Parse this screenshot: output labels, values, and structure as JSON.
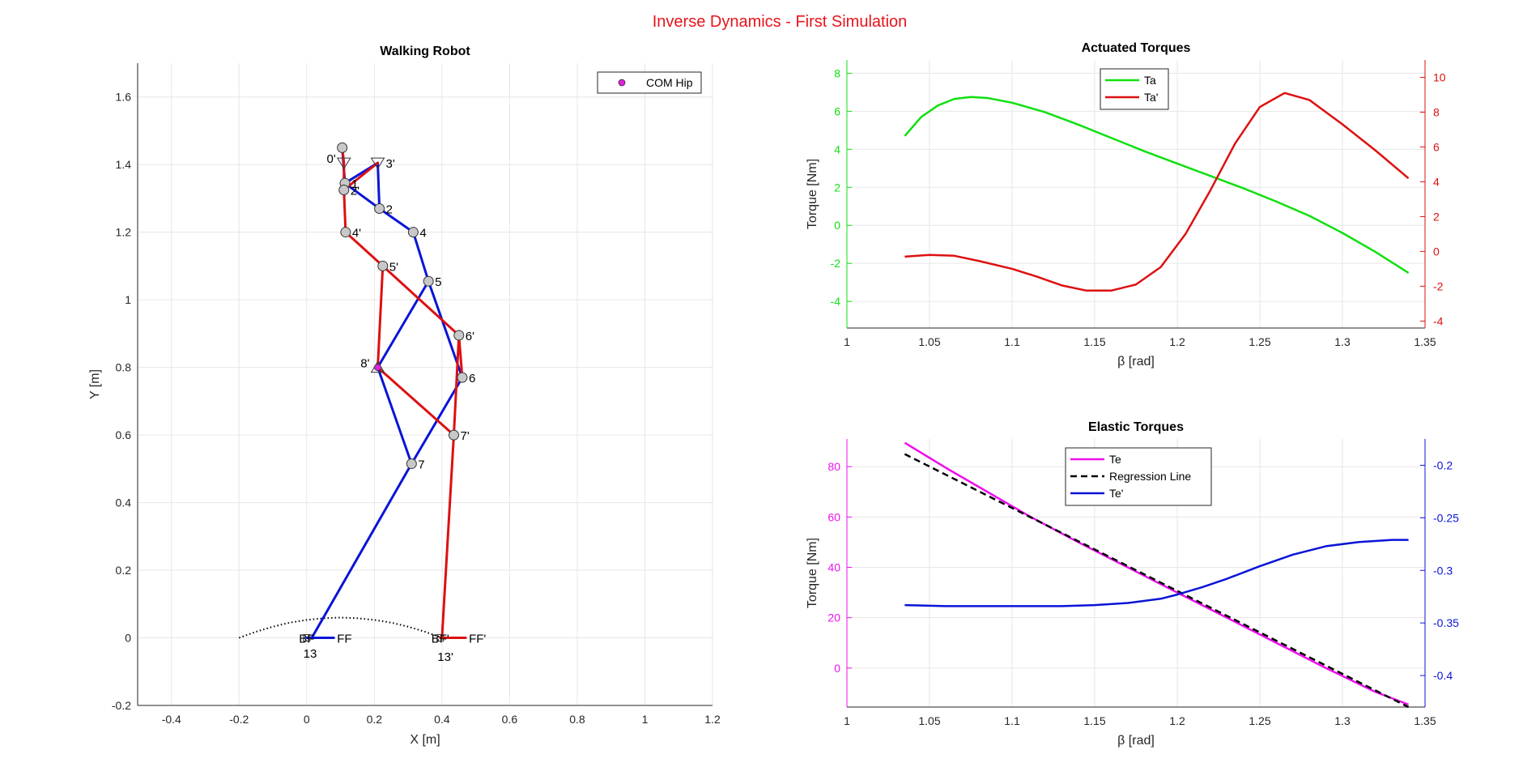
{
  "figure": {
    "title": "Inverse Dynamics - First Simulation",
    "title_color": "#e8141b"
  },
  "chart_data": [
    {
      "id": "walking",
      "type": "scatter",
      "title": "Walking Robot",
      "xlabel": "X [m]",
      "ylabel": "Y [m]",
      "xlim": [
        -0.5,
        1.2
      ],
      "ylim": [
        -0.2,
        1.7
      ],
      "xticks": [
        -0.4,
        -0.2,
        0,
        0.2,
        0.4,
        0.6,
        0.8,
        1,
        1.2
      ],
      "yticks": [
        -0.2,
        0,
        0.2,
        0.4,
        0.6,
        0.8,
        1,
        1.2,
        1.4,
        1.6
      ],
      "grid": true,
      "legend": {
        "placement": "top-right",
        "entries": [
          {
            "name": "COM Hip",
            "color": "#e020e0"
          }
        ]
      },
      "colors": {
        "leg1": "#0a14d8",
        "leg2": "#dd1010",
        "joint": "#c8c8c8"
      },
      "joints": [
        {
          "label": "0'",
          "x": 0.11,
          "y": 1.405,
          "shape": "triangle-down"
        },
        {
          "label": "1",
          "x": 0.113,
          "y": 1.345,
          "shape": "circle"
        },
        {
          "label": "2'",
          "x": 0.11,
          "y": 1.325,
          "shape": "circle"
        },
        {
          "label": "3'",
          "x": 0.21,
          "y": 1.405,
          "shape": "triangle-down"
        },
        {
          "label": "2",
          "x": 0.215,
          "y": 1.27,
          "shape": "circle"
        },
        {
          "label": "4'",
          "x": 0.115,
          "y": 1.2,
          "shape": "circle"
        },
        {
          "label": "4",
          "x": 0.315,
          "y": 1.2,
          "shape": "circle"
        },
        {
          "label": "5'",
          "x": 0.225,
          "y": 1.1,
          "shape": "circle"
        },
        {
          "label": "5",
          "x": 0.36,
          "y": 1.055,
          "shape": "circle"
        },
        {
          "label": "6'",
          "x": 0.45,
          "y": 0.895,
          "shape": "circle"
        },
        {
          "label": "8'",
          "x": 0.21,
          "y": 0.8,
          "shape": "triangle-up"
        },
        {
          "label": "6",
          "x": 0.46,
          "y": 0.77,
          "shape": "circle"
        },
        {
          "label": "7'",
          "x": 0.435,
          "y": 0.6,
          "shape": "circle"
        },
        {
          "label": "7",
          "x": 0.31,
          "y": 0.515,
          "shape": "circle"
        }
      ],
      "unlabeled_joints": [
        {
          "x": 0.105,
          "y": 1.45
        }
      ],
      "com_hip": {
        "x": 0.21,
        "y": 0.8
      },
      "foot_labels": [
        {
          "label": "BF",
          "x": 0.0,
          "y": 0.0
        },
        {
          "label": "FF",
          "x": 0.08,
          "y": 0.0
        },
        {
          "label": "13",
          "x": 0.01,
          "y": -0.025
        },
        {
          "label": "BF'",
          "x": 0.395,
          "y": 0.0
        },
        {
          "label": "FF'",
          "x": 0.47,
          "y": 0.0
        },
        {
          "label": "13'",
          "x": 0.41,
          "y": -0.035
        }
      ],
      "blue_links": [
        [
          [
            0.105,
            1.45
          ],
          [
            0.113,
            1.345
          ]
        ],
        [
          [
            0.113,
            1.345
          ],
          [
            0.21,
            1.405
          ]
        ],
        [
          [
            0.21,
            1.405
          ],
          [
            0.215,
            1.27
          ]
        ],
        [
          [
            0.113,
            1.345
          ],
          [
            0.215,
            1.27
          ]
        ],
        [
          [
            0.215,
            1.27
          ],
          [
            0.315,
            1.2
          ]
        ],
        [
          [
            0.315,
            1.2
          ],
          [
            0.36,
            1.055
          ]
        ],
        [
          [
            0.36,
            1.055
          ],
          [
            0.21,
            0.8
          ]
        ],
        [
          [
            0.36,
            1.055
          ],
          [
            0.46,
            0.77
          ]
        ],
        [
          [
            0.21,
            0.8
          ],
          [
            0.31,
            0.515
          ]
        ],
        [
          [
            0.46,
            0.77
          ],
          [
            0.31,
            0.515
          ]
        ],
        [
          [
            0.31,
            0.515
          ],
          [
            0.015,
            0.0
          ]
        ],
        [
          [
            0.0,
            0.0
          ],
          [
            0.08,
            0.0
          ]
        ]
      ],
      "red_links": [
        [
          [
            0.105,
            1.45
          ],
          [
            0.11,
            1.405
          ]
        ],
        [
          [
            0.11,
            1.405
          ],
          [
            0.11,
            1.325
          ]
        ],
        [
          [
            0.11,
            1.325
          ],
          [
            0.21,
            1.405
          ]
        ],
        [
          [
            0.11,
            1.325
          ],
          [
            0.115,
            1.2
          ]
        ],
        [
          [
            0.115,
            1.2
          ],
          [
            0.225,
            1.1
          ]
        ],
        [
          [
            0.225,
            1.1
          ],
          [
            0.21,
            0.8
          ]
        ],
        [
          [
            0.225,
            1.1
          ],
          [
            0.45,
            0.895
          ]
        ],
        [
          [
            0.45,
            0.895
          ],
          [
            0.46,
            0.77
          ]
        ],
        [
          [
            0.45,
            0.895
          ],
          [
            0.435,
            0.6
          ]
        ],
        [
          [
            0.21,
            0.8
          ],
          [
            0.435,
            0.6
          ]
        ],
        [
          [
            0.435,
            0.6
          ],
          [
            0.4,
            0.0
          ]
        ],
        [
          [
            0.395,
            0.0
          ],
          [
            0.47,
            0.0
          ]
        ]
      ],
      "trajectory": {
        "x": [
          -0.2,
          -0.15,
          -0.1,
          -0.05,
          0.0,
          0.05,
          0.1,
          0.15,
          0.2,
          0.25,
          0.3,
          0.35,
          0.4
        ],
        "y": [
          0.0,
          0.018,
          0.033,
          0.045,
          0.053,
          0.058,
          0.06,
          0.058,
          0.053,
          0.045,
          0.033,
          0.018,
          0.0
        ]
      }
    },
    {
      "id": "actuated",
      "type": "line",
      "title": "Actuated Torques",
      "xlabel": "β [rad]",
      "ylabel": "Torque [Nm]",
      "xlim": [
        1,
        1.35
      ],
      "ylim_left": [
        -5.4,
        8.7
      ],
      "ylim_right": [
        -4.4,
        11
      ],
      "xticks": [
        1,
        1.05,
        1.1,
        1.15,
        1.2,
        1.25,
        1.3,
        1.35
      ],
      "yticks_left": [
        -4,
        -2,
        0,
        2,
        4,
        6,
        8
      ],
      "yticks_right": [
        -4,
        -2,
        0,
        2,
        4,
        6,
        8,
        10
      ],
      "grid": true,
      "legend": {
        "placement": "top-left-center"
      },
      "series": [
        {
          "name": "Ta",
          "axis": "left",
          "color": "#10e010",
          "x": [
            1.035,
            1.045,
            1.055,
            1.065,
            1.075,
            1.085,
            1.1,
            1.12,
            1.14,
            1.16,
            1.18,
            1.2,
            1.22,
            1.24,
            1.26,
            1.28,
            1.3,
            1.32,
            1.34
          ],
          "y": [
            4.7,
            5.7,
            6.3,
            6.65,
            6.75,
            6.7,
            6.45,
            5.95,
            5.3,
            4.6,
            3.9,
            3.25,
            2.6,
            1.95,
            1.25,
            0.5,
            -0.4,
            -1.4,
            -2.5
          ]
        },
        {
          "name": "Ta'",
          "axis": "right",
          "color": "#dd1010",
          "x": [
            1.035,
            1.05,
            1.065,
            1.08,
            1.1,
            1.115,
            1.13,
            1.145,
            1.16,
            1.175,
            1.19,
            1.205,
            1.22,
            1.235,
            1.25,
            1.265,
            1.28,
            1.3,
            1.32,
            1.34
          ],
          "y": [
            -0.3,
            -0.2,
            -0.25,
            -0.55,
            -1.0,
            -1.45,
            -1.95,
            -2.25,
            -2.25,
            -1.9,
            -0.9,
            1.0,
            3.5,
            6.2,
            8.3,
            9.1,
            8.7,
            7.3,
            5.8,
            4.2
          ]
        }
      ]
    },
    {
      "id": "elastic",
      "type": "line",
      "title": "Elastic Torques",
      "xlabel": "β [rad]",
      "ylabel": "Torque [Nm]",
      "xlim": [
        1,
        1.35
      ],
      "ylim_left": [
        -15.5,
        91
      ],
      "ylim_right": [
        -0.43,
        -0.175
      ],
      "xticks": [
        1,
        1.05,
        1.1,
        1.15,
        1.2,
        1.25,
        1.3,
        1.35
      ],
      "yticks_left": [
        0,
        20,
        40,
        60,
        80
      ],
      "yticks_right": [
        -0.4,
        -0.35,
        -0.3,
        -0.25,
        -0.2
      ],
      "grid": true,
      "legend": {
        "placement": "top-left-center"
      },
      "series": [
        {
          "name": "Te",
          "axis": "left",
          "color": "#ee10ee",
          "x": [
            1.035,
            1.06,
            1.085,
            1.11,
            1.14,
            1.17,
            1.2,
            1.23,
            1.26,
            1.29,
            1.32,
            1.34
          ],
          "y": [
            89.5,
            79.5,
            70.0,
            60.5,
            50.0,
            40.0,
            30.0,
            20.0,
            10.0,
            0.0,
            -9.5,
            -14.5
          ],
          "style": "solid"
        },
        {
          "name": "Regression Line",
          "axis": "left",
          "color": "#000000",
          "x": [
            1.035,
            1.34
          ],
          "y": [
            85.0,
            -15.5
          ],
          "style": "dashed"
        },
        {
          "name": "Te'",
          "axis": "right",
          "color": "#0a14d8",
          "x": [
            1.035,
            1.06,
            1.1,
            1.13,
            1.15,
            1.17,
            1.19,
            1.2,
            1.215,
            1.23,
            1.25,
            1.27,
            1.29,
            1.31,
            1.33,
            1.34
          ],
          "y": [
            -0.333,
            -0.334,
            -0.334,
            -0.334,
            -0.333,
            -0.331,
            -0.327,
            -0.323,
            -0.316,
            -0.308,
            -0.296,
            -0.285,
            -0.277,
            -0.273,
            -0.271,
            -0.271
          ],
          "style": "solid"
        }
      ]
    }
  ]
}
